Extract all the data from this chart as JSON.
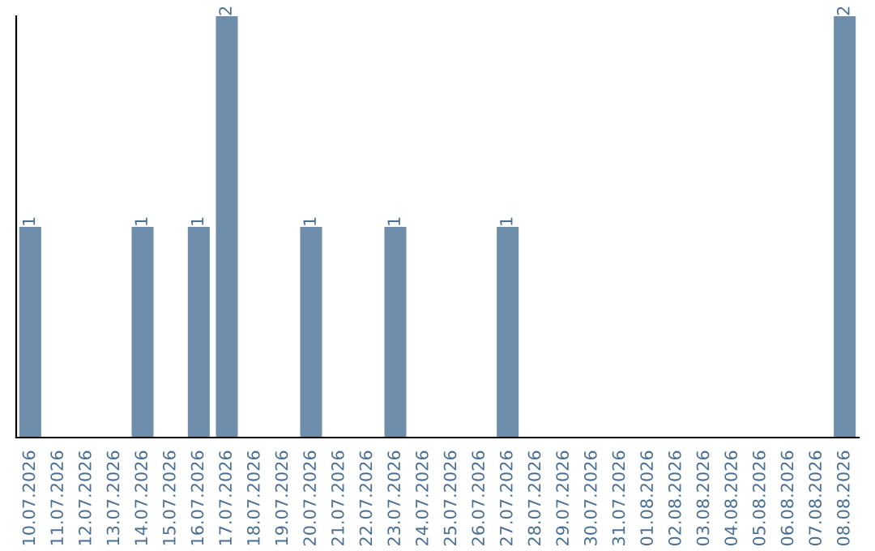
{
  "chart_data": {
    "type": "bar",
    "categories": [
      "10.07.2026",
      "11.07.2026",
      "12.07.2026",
      "13.07.2026",
      "14.07.2026",
      "15.07.2026",
      "16.07.2026",
      "17.07.2026",
      "18.07.2026",
      "19.07.2026",
      "20.07.2026",
      "21.07.2026",
      "22.07.2026",
      "23.07.2026",
      "24.07.2026",
      "25.07.2026",
      "26.07.2026",
      "27.07.2026",
      "28.07.2026",
      "29.07.2026",
      "30.07.2026",
      "31.07.2026",
      "01.08.2026",
      "02.08.2026",
      "03.08.2026",
      "04.08.2026",
      "05.08.2026",
      "06.08.2026",
      "07.08.2026",
      "08.08.2026"
    ],
    "values": [
      1,
      0,
      0,
      0,
      1,
      0,
      1,
      2,
      0,
      0,
      1,
      0,
      0,
      1,
      0,
      0,
      0,
      1,
      0,
      0,
      0,
      0,
      0,
      0,
      0,
      0,
      0,
      0,
      0,
      2
    ],
    "value_labels": [
      "1",
      null,
      null,
      null,
      "1",
      null,
      "1",
      "2",
      null,
      null,
      "1",
      null,
      null,
      "1",
      null,
      null,
      null,
      "1",
      null,
      null,
      null,
      null,
      null,
      null,
      null,
      null,
      null,
      null,
      null,
      "2"
    ],
    "color": "#6d8dab",
    "tick_labels": "x",
    "grid": false,
    "legend": false
  }
}
